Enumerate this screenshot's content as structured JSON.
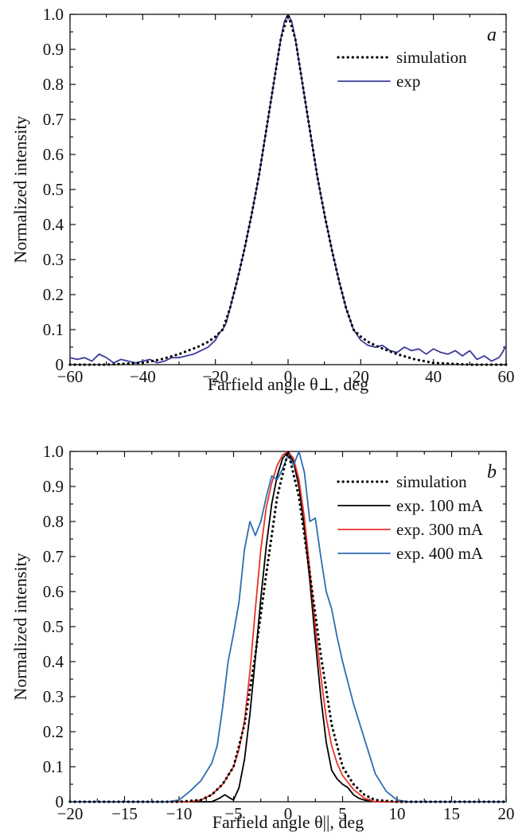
{
  "chart_data": [
    {
      "type": "line",
      "panel_label": "a",
      "xlabel": "Farfield angle θ⊥, deg",
      "ylabel": "Normalized intensity",
      "xlim": [
        -60,
        60
      ],
      "ylim": [
        0,
        1
      ],
      "xticks": [
        -60,
        -40,
        -20,
        0,
        20,
        40,
        60
      ],
      "xtick_labels": [
        "−60",
        "−40",
        "−20",
        "0",
        "20",
        "40",
        "60"
      ],
      "yticks": [
        0,
        0.1,
        0.2,
        0.3,
        0.4,
        0.5,
        0.6,
        0.7,
        0.8,
        0.9,
        1.0
      ],
      "ytick_labels": [
        "0",
        "0.1",
        "0.2",
        "0.3",
        "0.4",
        "0.5",
        "0.6",
        "0.7",
        "0.8",
        "0.9",
        "1.0"
      ],
      "grid": false,
      "legend_position": "top-right",
      "series": [
        {
          "name": "simulation",
          "style": "dotted",
          "color": "#000000",
          "x": [
            -60,
            -50,
            -40,
            -35,
            -30,
            -25,
            -22,
            -20,
            -18,
            -16,
            -14,
            -12,
            -10,
            -8,
            -6,
            -4,
            -2,
            0,
            2,
            4,
            6,
            8,
            10,
            12,
            14,
            16,
            18,
            20,
            22,
            25,
            30,
            35,
            40,
            50,
            60
          ],
          "y": [
            0.0,
            0.0,
            0.005,
            0.015,
            0.03,
            0.05,
            0.065,
            0.08,
            0.1,
            0.16,
            0.24,
            0.33,
            0.43,
            0.54,
            0.67,
            0.8,
            0.93,
            1.0,
            0.93,
            0.8,
            0.67,
            0.54,
            0.43,
            0.33,
            0.24,
            0.16,
            0.1,
            0.08,
            0.065,
            0.05,
            0.03,
            0.015,
            0.005,
            0.0,
            0.0
          ]
        },
        {
          "name": "exp",
          "style": "solid",
          "color": "#3b3a9c",
          "x": [
            -60,
            -58,
            -56,
            -54,
            -52,
            -50,
            -48,
            -46,
            -44,
            -42,
            -40,
            -38,
            -36,
            -34,
            -32,
            -30,
            -28,
            -26,
            -24,
            -22,
            -20,
            -19,
            -18,
            -17,
            -16,
            -14,
            -12,
            -10,
            -8,
            -6,
            -4,
            -2,
            -1,
            0,
            1,
            2,
            4,
            6,
            8,
            10,
            12,
            14,
            16,
            18,
            20,
            22,
            24,
            26,
            28,
            30,
            32,
            34,
            36,
            38,
            40,
            42,
            44,
            46,
            48,
            50,
            52,
            54,
            56,
            58,
            59,
            60
          ],
          "y": [
            0.02,
            0.015,
            0.02,
            0.01,
            0.03,
            0.02,
            0.005,
            0.015,
            0.01,
            0.005,
            0.01,
            0.015,
            0.005,
            0.01,
            0.02,
            0.02,
            0.025,
            0.03,
            0.04,
            0.05,
            0.07,
            0.09,
            0.1,
            0.12,
            0.16,
            0.24,
            0.33,
            0.43,
            0.54,
            0.67,
            0.8,
            0.93,
            0.98,
            1.0,
            0.98,
            0.93,
            0.8,
            0.67,
            0.54,
            0.43,
            0.33,
            0.24,
            0.16,
            0.1,
            0.07,
            0.055,
            0.05,
            0.055,
            0.04,
            0.035,
            0.05,
            0.04,
            0.045,
            0.03,
            0.045,
            0.035,
            0.03,
            0.04,
            0.025,
            0.04,
            0.015,
            0.025,
            0.01,
            0.02,
            0.035,
            0.055
          ]
        }
      ]
    },
    {
      "type": "line",
      "panel_label": "b",
      "xlabel": "Farfield angle θ||, deg",
      "ylabel": "Normalized intensity",
      "xlim": [
        -20,
        20
      ],
      "ylim": [
        0,
        1
      ],
      "xticks": [
        -20,
        -15,
        -10,
        -5,
        0,
        5,
        10,
        15,
        20
      ],
      "xtick_labels": [
        "−20",
        "−15",
        "−10",
        "−5",
        "0",
        "5",
        "10",
        "15",
        "20"
      ],
      "yticks": [
        0,
        0.1,
        0.2,
        0.3,
        0.4,
        0.5,
        0.6,
        0.7,
        0.8,
        0.9,
        1.0
      ],
      "ytick_labels": [
        "0",
        "0.1",
        "0.2",
        "0.3",
        "0.4",
        "0.5",
        "0.6",
        "0.7",
        "0.8",
        "0.9",
        "1.0"
      ],
      "grid": false,
      "legend_position": "top-right",
      "series": [
        {
          "name": "simulation",
          "style": "dotted",
          "color": "#000000",
          "x": [
            -20,
            -10,
            -8,
            -7,
            -6,
            -5,
            -4,
            -3,
            -2,
            -1,
            0,
            1,
            2,
            3,
            4,
            5,
            6,
            7,
            8,
            10,
            20
          ],
          "y": [
            0.0,
            0.0,
            0.005,
            0.02,
            0.05,
            0.1,
            0.22,
            0.42,
            0.65,
            0.87,
            1.0,
            0.87,
            0.65,
            0.42,
            0.22,
            0.1,
            0.05,
            0.02,
            0.005,
            0.0,
            0.0
          ]
        },
        {
          "name": "exp. 100 mA",
          "style": "solid",
          "color": "#000000",
          "x": [
            -20,
            -7,
            -6.3,
            -5.8,
            -5.3,
            -5,
            -4.5,
            -4,
            -3.5,
            -3,
            -2.5,
            -2,
            -1.5,
            -1,
            -0.5,
            0,
            0.5,
            1,
            1.5,
            2,
            2.5,
            3,
            3.5,
            4,
            4.5,
            5,
            5.5,
            6,
            6.5,
            7,
            8,
            20
          ],
          "y": [
            0.0,
            0.0,
            0.01,
            0.02,
            0.01,
            0.005,
            0.04,
            0.12,
            0.25,
            0.41,
            0.58,
            0.73,
            0.85,
            0.93,
            0.98,
            1.0,
            0.97,
            0.9,
            0.78,
            0.63,
            0.46,
            0.3,
            0.17,
            0.09,
            0.065,
            0.05,
            0.04,
            0.02,
            0.01,
            0.005,
            0.0,
            0.0
          ]
        },
        {
          "name": "exp. 300 mA",
          "style": "solid",
          "color": "#e8332a",
          "x": [
            -20,
            -9,
            -8,
            -7,
            -6,
            -5,
            -4.5,
            -4,
            -3.5,
            -3,
            -2.5,
            -2,
            -1.5,
            -1,
            -0.5,
            0,
            0.5,
            1,
            1.5,
            2,
            2.5,
            3,
            3.5,
            4,
            4.5,
            5,
            6,
            7,
            8,
            20
          ],
          "y": [
            0.0,
            0.0,
            0.005,
            0.02,
            0.05,
            0.1,
            0.15,
            0.23,
            0.37,
            0.55,
            0.72,
            0.84,
            0.91,
            0.96,
            0.99,
            1.0,
            0.98,
            0.92,
            0.81,
            0.66,
            0.5,
            0.36,
            0.24,
            0.16,
            0.11,
            0.075,
            0.035,
            0.01,
            0.0,
            0.0
          ]
        },
        {
          "name": "exp. 400 mA",
          "style": "solid",
          "color": "#2e6db0",
          "x": [
            -20,
            -11,
            -10,
            -9,
            -8,
            -7,
            -6.5,
            -6,
            -5.5,
            -5,
            -4.5,
            -4,
            -3.5,
            -3,
            -2.5,
            -2,
            -1.5,
            -1,
            -0.5,
            0,
            0.5,
            1,
            1.5,
            2,
            2.5,
            3,
            3.5,
            4,
            4.5,
            5,
            6,
            7,
            8,
            9,
            10,
            11,
            20
          ],
          "y": [
            0.0,
            0.0,
            0.005,
            0.03,
            0.06,
            0.11,
            0.16,
            0.27,
            0.4,
            0.48,
            0.57,
            0.72,
            0.8,
            0.76,
            0.8,
            0.87,
            0.93,
            0.92,
            0.95,
            0.99,
            0.96,
            1.0,
            0.94,
            0.8,
            0.81,
            0.7,
            0.6,
            0.55,
            0.47,
            0.4,
            0.28,
            0.18,
            0.08,
            0.03,
            0.005,
            0.0,
            0.0
          ]
        }
      ]
    }
  ]
}
